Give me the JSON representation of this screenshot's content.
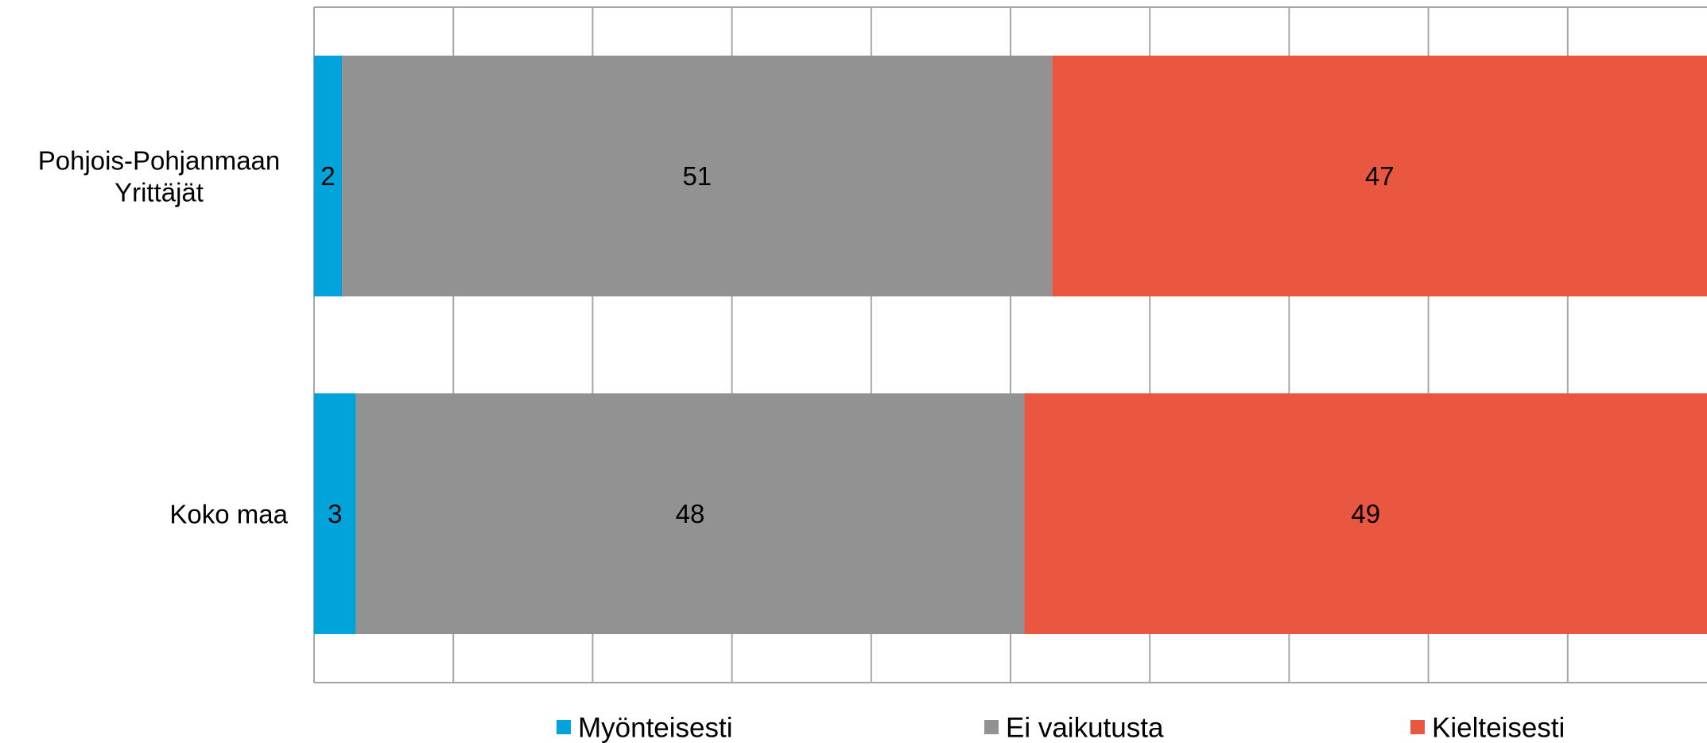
{
  "chart_data": {
    "type": "bar",
    "orientation": "horizontal",
    "stacked": "percent",
    "categories": [
      "Pohjois-Pohjanmaan Yrittäjät",
      "Koko maa"
    ],
    "category_label_lines": [
      [
        "Pohjois-Pohjanmaan",
        "Yrittäjät"
      ],
      [
        "Koko maa"
      ]
    ],
    "series": [
      {
        "name": "Myönteisesti",
        "color": "#00A3DA",
        "values": [
          2,
          3
        ],
        "labels": [
          "2",
          "3"
        ]
      },
      {
        "name": "Ei vaikutusta",
        "color": "#929292",
        "values": [
          51,
          48
        ],
        "labels": [
          "51",
          "48"
        ]
      },
      {
        "name": "Kielteisesti",
        "color": "#EA5740",
        "values": [
          47,
          49
        ],
        "labels": [
          "47",
          "49"
        ]
      }
    ],
    "xlim": [
      0,
      100
    ],
    "grid": true,
    "legend_position": "bottom"
  }
}
